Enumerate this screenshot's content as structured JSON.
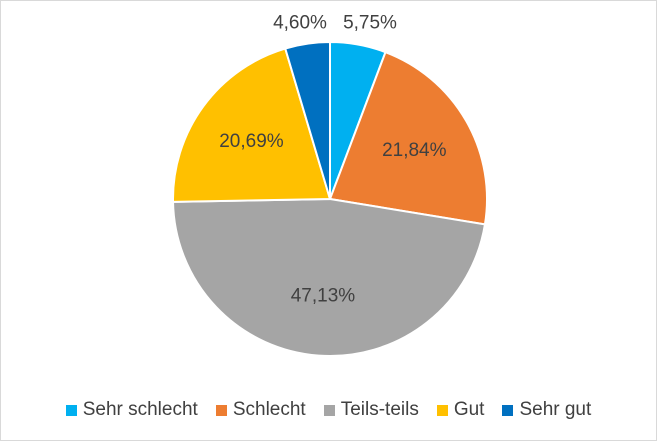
{
  "chart_data": {
    "type": "pie",
    "categories": [
      "Sehr schlecht",
      "Schlecht",
      "Teils-teils",
      "Gut",
      "Sehr gut"
    ],
    "values": [
      5.75,
      21.84,
      47.13,
      20.69,
      4.6
    ],
    "labels": [
      "5,75%",
      "21,84%",
      "47,13%",
      "20,69%",
      "4,60%"
    ],
    "colors": [
      "#00b0f0",
      "#ed7d31",
      "#a5a5a5",
      "#ffc000",
      "#0070c0"
    ],
    "unit": "%",
    "legend_position": "bottom",
    "start_angle": "12 o'clock",
    "direction": "clockwise"
  },
  "legend": {
    "items": [
      {
        "label": "Sehr schlecht",
        "color": "#00b0f0"
      },
      {
        "label": "Schlecht",
        "color": "#ed7d31"
      },
      {
        "label": "Teils-teils",
        "color": "#a5a5a5"
      },
      {
        "label": "Gut",
        "color": "#ffc000"
      },
      {
        "label": "Sehr gut",
        "color": "#0070c0"
      }
    ]
  }
}
